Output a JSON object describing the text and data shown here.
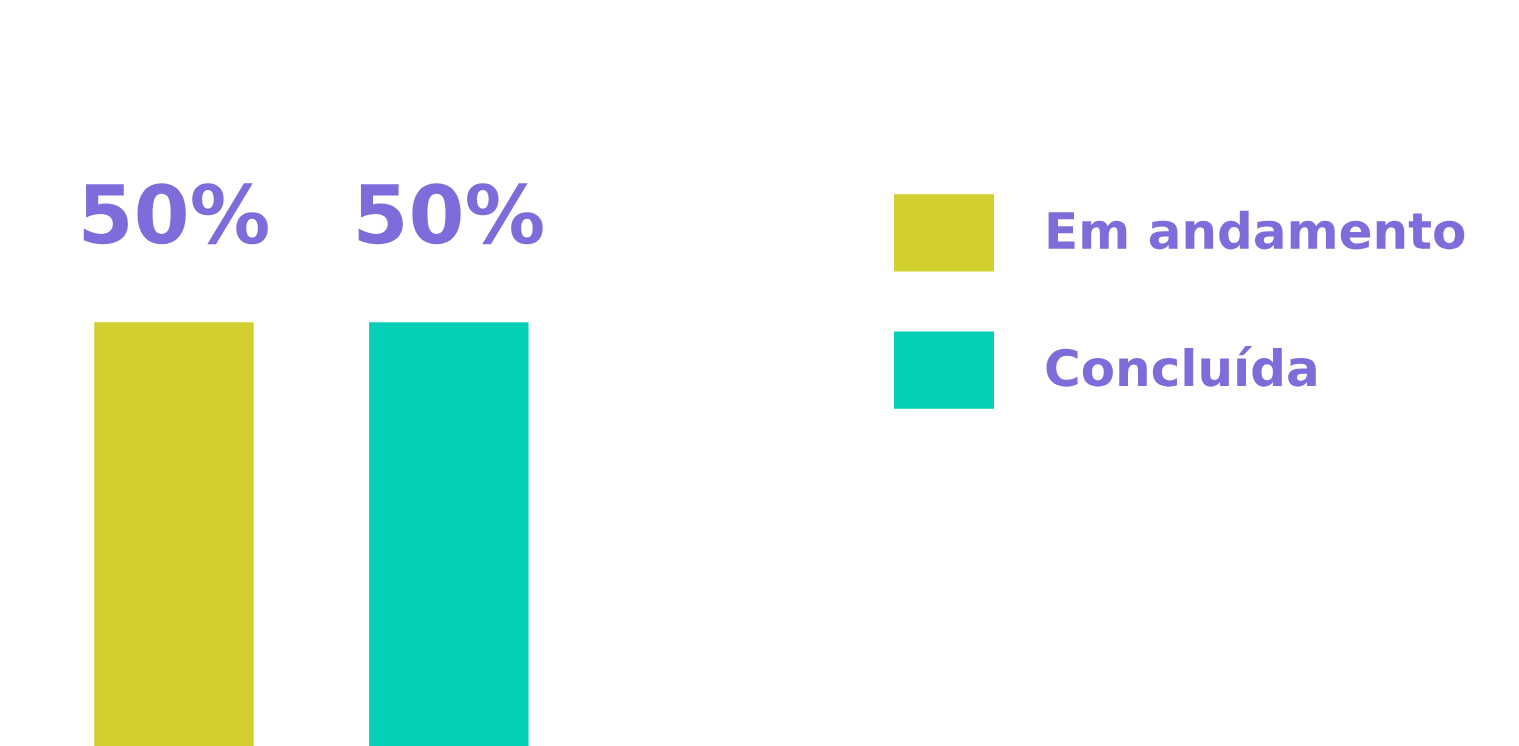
{
  "chart_data": {
    "type": "bar",
    "categories": [
      null
    ],
    "series": [
      {
        "name": "Em andamento",
        "color": "#d1cf2e",
        "values": [
          50
        ],
        "value_labels": [
          "50%"
        ]
      },
      {
        "name": "Concluída",
        "color": "#06cfb8",
        "values": [
          50
        ],
        "value_labels": [
          "50%"
        ]
      }
    ],
    "legend": "right"
  }
}
